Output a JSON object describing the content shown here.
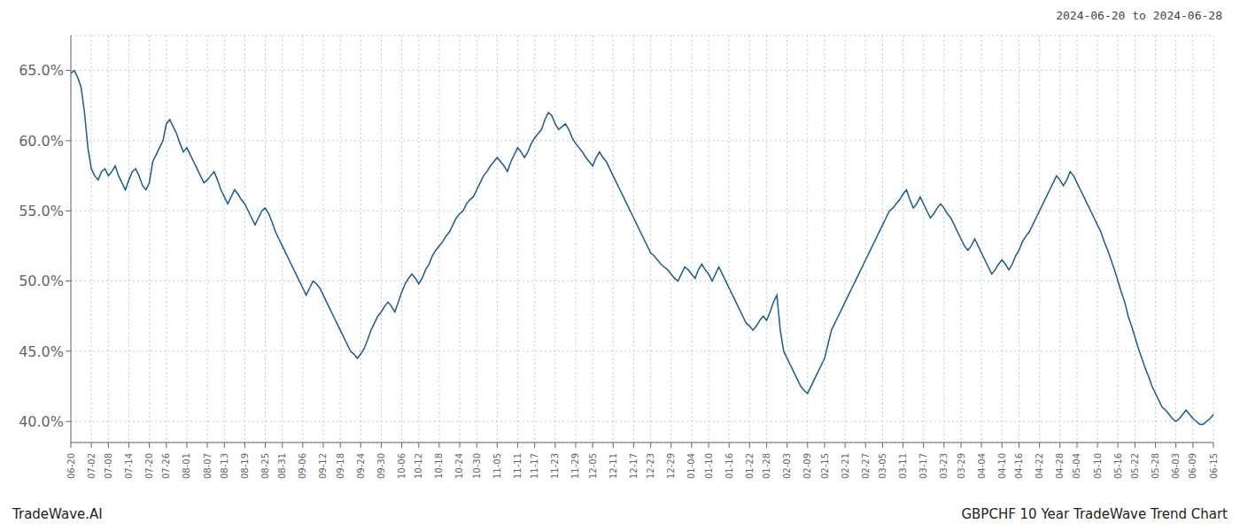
{
  "chart_data": {
    "type": "line",
    "title": "2024-06-20 to 2024-06-28",
    "annotations": [
      "TradeWave.AI",
      "GBPCHF 10 Year TradeWave Trend Chart"
    ],
    "categories": [
      "06-20",
      null,
      null,
      null,
      null,
      null,
      "07-02",
      null,
      null,
      null,
      null,
      "07-08",
      null,
      null,
      null,
      null,
      null,
      "07-14",
      null,
      null,
      null,
      null,
      null,
      "07-20",
      null,
      null,
      null,
      null,
      "07-26",
      null,
      null,
      null,
      null,
      null,
      "08-01",
      null,
      null,
      null,
      null,
      null,
      "08-07",
      null,
      null,
      null,
      null,
      "08-13",
      null,
      null,
      null,
      null,
      null,
      "08-19",
      null,
      null,
      null,
      null,
      null,
      "08-25",
      null,
      null,
      null,
      null,
      "08-31",
      null,
      null,
      null,
      null,
      null,
      "09-06",
      null,
      null,
      null,
      null,
      null,
      "09-12",
      null,
      null,
      null,
      null,
      "09-18",
      null,
      null,
      null,
      null,
      null,
      "09-24",
      null,
      null,
      null,
      null,
      null,
      "09-30",
      null,
      null,
      null,
      null,
      null,
      "10-06",
      null,
      null,
      null,
      null,
      "10-12",
      null,
      null,
      null,
      null,
      null,
      "10-18",
      null,
      null,
      null,
      null,
      null,
      "10-24",
      null,
      null,
      null,
      null,
      "10-30",
      null,
      null,
      null,
      null,
      null,
      "11-05",
      null,
      null,
      null,
      null,
      null,
      "11-11",
      null,
      null,
      null,
      null,
      "11-17",
      null,
      null,
      null,
      null,
      null,
      "11-23",
      null,
      null,
      null,
      null,
      null,
      "11-29",
      null,
      null,
      null,
      null,
      "12-05",
      null,
      null,
      null,
      null,
      null,
      "12-11",
      null,
      null,
      null,
      null,
      null,
      "12-17",
      null,
      null,
      null,
      null,
      "12-23",
      null,
      null,
      null,
      null,
      null,
      "12-29",
      null,
      null,
      null,
      null,
      null,
      "01-04",
      null,
      null,
      null,
      null,
      "01-10",
      null,
      null,
      null,
      null,
      null,
      "01-16",
      null,
      null,
      null,
      null,
      null,
      "01-22",
      null,
      null,
      null,
      null,
      "01-28",
      null,
      null,
      null,
      null,
      null,
      "02-03",
      null,
      null,
      null,
      null,
      null,
      "02-09",
      null,
      null,
      null,
      null,
      "02-15",
      null,
      null,
      null,
      null,
      null,
      "02-21",
      null,
      null,
      null,
      null,
      null,
      "02-27",
      null,
      null,
      null,
      null,
      "03-05",
      null,
      null,
      null,
      null,
      null,
      "03-11",
      null,
      null,
      null,
      null,
      null,
      "03-17",
      null,
      null,
      null,
      null,
      null,
      "03-23",
      null,
      null,
      null,
      null,
      "03-29",
      null,
      null,
      null,
      null,
      null,
      "04-04",
      null,
      null,
      null,
      null,
      null,
      "04-10",
      null,
      null,
      null,
      null,
      "04-16",
      null,
      null,
      null,
      null,
      null,
      "04-22",
      null,
      null,
      null,
      null,
      null,
      "04-28",
      null,
      null,
      null,
      null,
      "05-04",
      null,
      null,
      null,
      null,
      null,
      "05-10",
      null,
      null,
      null,
      null,
      null,
      "05-16",
      null,
      null,
      null,
      null,
      "05-22",
      null,
      null,
      null,
      null,
      null,
      "05-28",
      null,
      null,
      null,
      null,
      null,
      "06-03",
      null,
      null,
      null,
      null,
      "06-09",
      null,
      null,
      null,
      null,
      null,
      "06-15"
    ],
    "values": [
      64.8,
      65.0,
      64.5,
      63.8,
      62.0,
      59.5,
      58.0,
      57.5,
      57.2,
      57.8,
      58.0,
      57.5,
      57.8,
      58.2,
      57.5,
      57.0,
      56.5,
      57.2,
      57.8,
      58.0,
      57.5,
      56.8,
      56.5,
      57.0,
      58.5,
      59.0,
      59.5,
      60.0,
      61.2,
      61.5,
      61.0,
      60.5,
      59.8,
      59.2,
      59.5,
      59.0,
      58.5,
      58.0,
      57.5,
      57.0,
      57.2,
      57.5,
      57.8,
      57.2,
      56.5,
      56.0,
      55.5,
      56.0,
      56.5,
      56.2,
      55.8,
      55.5,
      55.0,
      54.5,
      54.0,
      54.5,
      55.0,
      55.2,
      54.8,
      54.2,
      53.5,
      53.0,
      52.5,
      52.0,
      51.5,
      51.0,
      50.5,
      50.0,
      49.5,
      49.0,
      49.5,
      50.0,
      49.8,
      49.5,
      49.0,
      48.5,
      48.0,
      47.5,
      47.0,
      46.5,
      46.0,
      45.5,
      45.0,
      44.8,
      44.5,
      44.8,
      45.2,
      45.8,
      46.5,
      47.0,
      47.5,
      47.8,
      48.2,
      48.5,
      48.2,
      47.8,
      48.5,
      49.2,
      49.8,
      50.2,
      50.5,
      50.2,
      49.8,
      50.2,
      50.8,
      51.2,
      51.8,
      52.2,
      52.5,
      52.8,
      53.2,
      53.5,
      54.0,
      54.5,
      54.8,
      55.0,
      55.5,
      55.8,
      56.0,
      56.5,
      57.0,
      57.5,
      57.8,
      58.2,
      58.5,
      58.8,
      58.5,
      58.2,
      57.8,
      58.5,
      59.0,
      59.5,
      59.2,
      58.8,
      59.2,
      59.8,
      60.2,
      60.5,
      60.8,
      61.5,
      62.0,
      61.8,
      61.2,
      60.8,
      61.0,
      61.2,
      60.8,
      60.2,
      59.8,
      59.5,
      59.2,
      58.8,
      58.5,
      58.2,
      58.8,
      59.2,
      58.8,
      58.5,
      58.0,
      57.5,
      57.0,
      56.5,
      56.0,
      55.5,
      55.0,
      54.5,
      54.0,
      53.5,
      53.0,
      52.5,
      52.0,
      51.8,
      51.5,
      51.2,
      51.0,
      50.8,
      50.5,
      50.2,
      50.0,
      50.5,
      51.0,
      50.8,
      50.5,
      50.2,
      50.8,
      51.2,
      50.8,
      50.5,
      50.0,
      50.5,
      51.0,
      50.5,
      50.0,
      49.5,
      49.0,
      48.5,
      48.0,
      47.5,
      47.0,
      46.8,
      46.5,
      46.8,
      47.2,
      47.5,
      47.2,
      47.8,
      48.5,
      49.0,
      46.5,
      45.0,
      44.5,
      44.0,
      43.5,
      43.0,
      42.5,
      42.2,
      42.0,
      42.5,
      43.0,
      43.5,
      44.0,
      44.5,
      45.5,
      46.5,
      47.0,
      47.5,
      48.0,
      48.5,
      49.0,
      49.5,
      50.0,
      50.5,
      51.0,
      51.5,
      52.0,
      52.5,
      53.0,
      53.5,
      54.0,
      54.5,
      55.0,
      55.2,
      55.5,
      55.8,
      56.2,
      56.5,
      55.8,
      55.2,
      55.5,
      56.0,
      55.5,
      55.0,
      54.5,
      54.8,
      55.2,
      55.5,
      55.2,
      54.8,
      54.5,
      54.0,
      53.5,
      53.0,
      52.5,
      52.2,
      52.5,
      53.0,
      52.5,
      52.0,
      51.5,
      51.0,
      50.5,
      50.8,
      51.2,
      51.5,
      51.2,
      50.8,
      51.2,
      51.8,
      52.2,
      52.8,
      53.2,
      53.5,
      54.0,
      54.5,
      55.0,
      55.5,
      56.0,
      56.5,
      57.0,
      57.5,
      57.2,
      56.8,
      57.2,
      57.8,
      57.5,
      57.0,
      56.5,
      56.0,
      55.5,
      55.0,
      54.5,
      54.0,
      53.5,
      52.8,
      52.2,
      51.5,
      50.8,
      50.0,
      49.2,
      48.5,
      47.5,
      46.8,
      46.0,
      45.2,
      44.5,
      43.8,
      43.2,
      42.5,
      42.0,
      41.5,
      41.0,
      40.8,
      40.5,
      40.2,
      40.0,
      40.2,
      40.5,
      40.8,
      40.5,
      40.2,
      40.0,
      39.8,
      39.8,
      40.0,
      40.2,
      40.5
    ],
    "color": "#1a5998",
    "ylim": [
      38.5,
      67.5
    ],
    "yticks": [
      {
        "value": 40.0,
        "label": "40.0%"
      },
      {
        "value": 45.0,
        "label": "45.0%"
      },
      {
        "value": 50.0,
        "label": "50.0%"
      },
      {
        "value": 55.0,
        "label": "55.0%"
      },
      {
        "value": 60.0,
        "label": "60.0%"
      },
      {
        "value": 65.0,
        "label": "65.0%"
      }
    ],
    "grid": true
  }
}
